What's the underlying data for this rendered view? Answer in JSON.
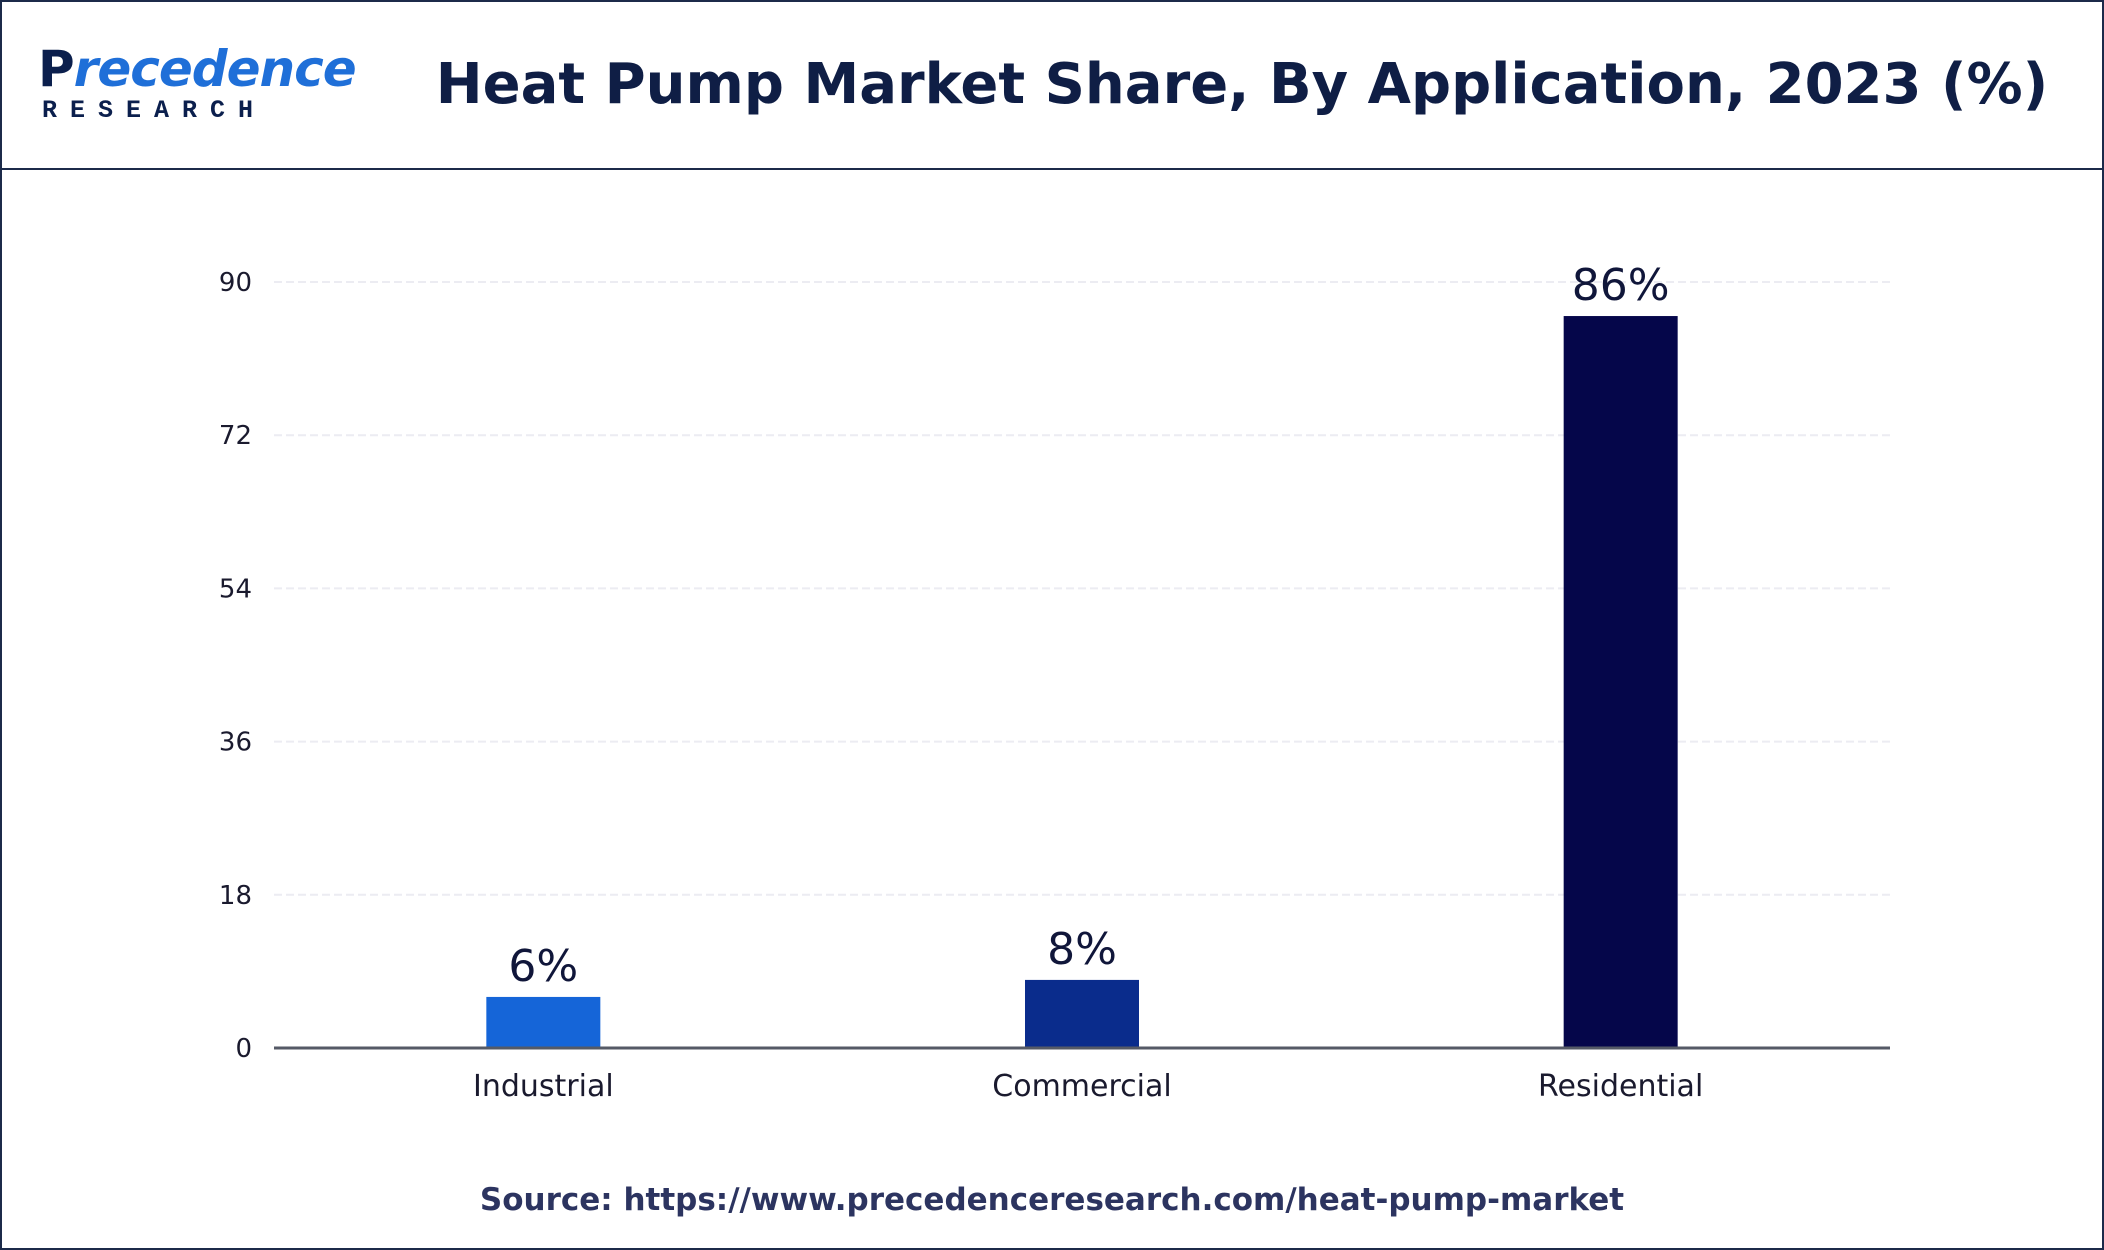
{
  "header": {
    "logo_main": "recedence",
    "logo_initial": "P",
    "logo_sub": "RESEARCH",
    "title": "Heat Pump Market Share, By Application, 2023 (%)"
  },
  "chart_data": {
    "type": "bar",
    "categories": [
      "Industrial",
      "Commercial",
      "Residential"
    ],
    "values": [
      6,
      8,
      86
    ],
    "data_labels": [
      "6%",
      "8%",
      "86%"
    ],
    "colors": [
      "#1565d8",
      "#0a2c8c",
      "#05064a"
    ],
    "yticks": [
      0,
      18,
      36,
      54,
      72,
      90
    ],
    "ylim": [
      0,
      90
    ],
    "grid": true,
    "legend": "none"
  },
  "source": "Source: https://www.precedenceresearch.com/heat-pump-market"
}
